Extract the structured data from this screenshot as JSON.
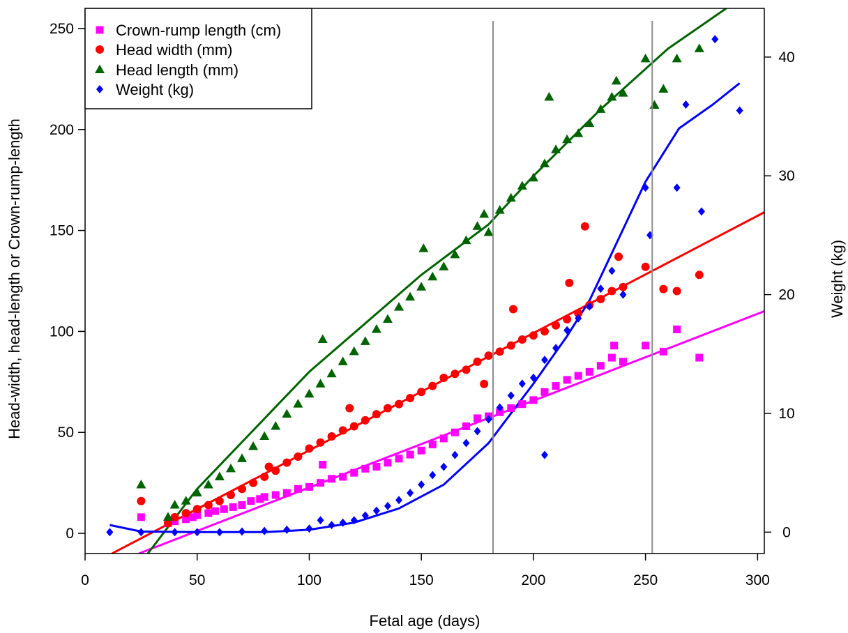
{
  "chart_data": {
    "type": "scatter",
    "xlabel": "Fetal age (days)",
    "ylabel_left": "Head-width, head-length or Crown-rump-length",
    "ylabel_right": "Weight (kg)",
    "xlim": [
      0,
      303
    ],
    "ylim_left": [
      -10,
      260
    ],
    "ylim_right": [
      -1.8,
      44.1
    ],
    "x_ticks": [
      0,
      50,
      100,
      150,
      200,
      250,
      300
    ],
    "y_ticks_left": [
      0,
      50,
      100,
      150,
      200,
      250
    ],
    "y_ticks_right": [
      0,
      10,
      20,
      30,
      40
    ],
    "vertical_reference_lines": [
      182,
      253
    ],
    "legend_position": "top-left",
    "grid": false,
    "series": [
      {
        "name": "Crown-rump length (cm)",
        "marker": "square",
        "color": "#ff00ff",
        "axis": "left",
        "points": [
          [
            25,
            8
          ],
          [
            37,
            5
          ],
          [
            40,
            6
          ],
          [
            45,
            7
          ],
          [
            48,
            8
          ],
          [
            50,
            9
          ],
          [
            55,
            10
          ],
          [
            58,
            11
          ],
          [
            62,
            12
          ],
          [
            66,
            13
          ],
          [
            70,
            14
          ],
          [
            74,
            16
          ],
          [
            78,
            17
          ],
          [
            80,
            18
          ],
          [
            85,
            19
          ],
          [
            90,
            20
          ],
          [
            95,
            22
          ],
          [
            100,
            23
          ],
          [
            105,
            25
          ],
          [
            106,
            34
          ],
          [
            110,
            27
          ],
          [
            115,
            28
          ],
          [
            120,
            30
          ],
          [
            125,
            32
          ],
          [
            130,
            33
          ],
          [
            135,
            35
          ],
          [
            140,
            37
          ],
          [
            145,
            39
          ],
          [
            150,
            41
          ],
          [
            155,
            44
          ],
          [
            160,
            47
          ],
          [
            165,
            50
          ],
          [
            170,
            53
          ],
          [
            175,
            57
          ],
          [
            180,
            58
          ],
          [
            185,
            60
          ],
          [
            190,
            62
          ],
          [
            195,
            64
          ],
          [
            200,
            66
          ],
          [
            205,
            70
          ],
          [
            210,
            73
          ],
          [
            215,
            76
          ],
          [
            220,
            78
          ],
          [
            225,
            80
          ],
          [
            230,
            83
          ],
          [
            235,
            87
          ],
          [
            236,
            93
          ],
          [
            240,
            85
          ],
          [
            250,
            93
          ],
          [
            258,
            90
          ],
          [
            264,
            101
          ],
          [
            274,
            87
          ]
        ]
      },
      {
        "name": "Head width (mm)",
        "marker": "circle",
        "color": "#ff0000",
        "axis": "left",
        "points": [
          [
            25,
            16
          ],
          [
            37,
            5
          ],
          [
            40,
            8
          ],
          [
            45,
            10
          ],
          [
            50,
            12
          ],
          [
            55,
            14
          ],
          [
            60,
            16
          ],
          [
            65,
            19
          ],
          [
            70,
            22
          ],
          [
            75,
            25
          ],
          [
            80,
            28
          ],
          [
            82,
            33
          ],
          [
            85,
            31
          ],
          [
            90,
            35
          ],
          [
            95,
            38
          ],
          [
            100,
            42
          ],
          [
            105,
            45
          ],
          [
            110,
            48
          ],
          [
            115,
            51
          ],
          [
            118,
            62
          ],
          [
            120,
            53
          ],
          [
            125,
            56
          ],
          [
            130,
            59
          ],
          [
            135,
            62
          ],
          [
            140,
            64
          ],
          [
            145,
            67
          ],
          [
            150,
            70
          ],
          [
            155,
            73
          ],
          [
            160,
            77
          ],
          [
            165,
            79
          ],
          [
            170,
            81
          ],
          [
            175,
            85
          ],
          [
            178,
            74
          ],
          [
            180,
            88
          ],
          [
            185,
            90
          ],
          [
            190,
            93
          ],
          [
            191,
            111
          ],
          [
            195,
            96
          ],
          [
            200,
            98
          ],
          [
            205,
            100
          ],
          [
            210,
            103
          ],
          [
            215,
            106
          ],
          [
            216,
            124
          ],
          [
            220,
            109
          ],
          [
            223,
            152
          ],
          [
            225,
            113
          ],
          [
            230,
            116
          ],
          [
            235,
            120
          ],
          [
            238,
            137
          ],
          [
            240,
            122
          ],
          [
            250,
            132
          ],
          [
            258,
            121
          ],
          [
            264,
            120
          ],
          [
            274,
            128
          ]
        ]
      },
      {
        "name": "Head length (mm)",
        "marker": "triangle",
        "color": "#006400",
        "axis": "left",
        "points": [
          [
            25,
            24
          ],
          [
            37,
            8
          ],
          [
            40,
            14
          ],
          [
            45,
            16
          ],
          [
            50,
            20
          ],
          [
            55,
            24
          ],
          [
            60,
            28
          ],
          [
            65,
            32
          ],
          [
            70,
            37
          ],
          [
            75,
            43
          ],
          [
            80,
            48
          ],
          [
            85,
            53
          ],
          [
            90,
            59
          ],
          [
            95,
            64
          ],
          [
            100,
            69
          ],
          [
            105,
            74
          ],
          [
            106,
            96
          ],
          [
            110,
            79
          ],
          [
            115,
            85
          ],
          [
            120,
            90
          ],
          [
            125,
            95
          ],
          [
            130,
            101
          ],
          [
            135,
            106
          ],
          [
            140,
            112
          ],
          [
            145,
            117
          ],
          [
            150,
            122
          ],
          [
            151,
            141
          ],
          [
            155,
            127
          ],
          [
            160,
            132
          ],
          [
            165,
            138
          ],
          [
            170,
            145
          ],
          [
            175,
            152
          ],
          [
            178,
            158
          ],
          [
            180,
            149
          ],
          [
            185,
            160
          ],
          [
            190,
            166
          ],
          [
            195,
            172
          ],
          [
            200,
            176
          ],
          [
            205,
            183
          ],
          [
            207,
            216
          ],
          [
            210,
            190
          ],
          [
            215,
            195
          ],
          [
            220,
            198
          ],
          [
            225,
            203
          ],
          [
            230,
            210
          ],
          [
            235,
            216
          ],
          [
            237,
            224
          ],
          [
            240,
            218
          ],
          [
            250,
            235
          ],
          [
            254,
            212
          ],
          [
            258,
            220
          ],
          [
            264,
            235
          ],
          [
            274,
            240
          ]
        ]
      },
      {
        "name": "Weight (kg)",
        "marker": "diamond",
        "color": "#0000ff",
        "axis": "right",
        "points": [
          [
            11,
            0
          ],
          [
            25,
            0
          ],
          [
            40,
            0
          ],
          [
            50,
            0
          ],
          [
            60,
            0
          ],
          [
            70,
            0.05
          ],
          [
            80,
            0.1
          ],
          [
            90,
            0.2
          ],
          [
            100,
            0.3
          ],
          [
            105,
            1.0
          ],
          [
            110,
            0.6
          ],
          [
            115,
            0.8
          ],
          [
            120,
            1.0
          ],
          [
            125,
            1.4
          ],
          [
            130,
            1.8
          ],
          [
            135,
            2.2
          ],
          [
            140,
            2.7
          ],
          [
            145,
            3.3
          ],
          [
            150,
            4.0
          ],
          [
            155,
            4.8
          ],
          [
            160,
            5.5
          ],
          [
            165,
            6.5
          ],
          [
            170,
            7.5
          ],
          [
            175,
            8.5
          ],
          [
            180,
            9.5
          ],
          [
            185,
            10.5
          ],
          [
            190,
            11.5
          ],
          [
            195,
            12.5
          ],
          [
            200,
            13.0
          ],
          [
            205,
            6.5
          ],
          [
            205,
            14.5
          ],
          [
            210,
            15.5
          ],
          [
            215,
            17.0
          ],
          [
            220,
            18.0
          ],
          [
            225,
            19.0
          ],
          [
            230,
            20.5
          ],
          [
            235,
            22.0
          ],
          [
            240,
            20.0
          ],
          [
            250,
            29.0
          ],
          [
            252,
            25.0
          ],
          [
            264,
            29.0
          ],
          [
            268,
            36.0
          ],
          [
            275,
            27.0
          ],
          [
            281,
            41.5
          ],
          [
            292,
            35.5
          ]
        ]
      }
    ],
    "fit_lines": [
      {
        "series": "Crown-rump length (cm)",
        "color": "#ff00ff",
        "axis": "left",
        "points": [
          [
            24,
            -10
          ],
          [
            303,
            110
          ]
        ]
      },
      {
        "series": "Head width (mm)",
        "color": "#ff0000",
        "axis": "left",
        "points": [
          [
            12,
            -10
          ],
          [
            303,
            159
          ]
        ]
      },
      {
        "series": "Head length (mm)",
        "color": "#006400",
        "axis": "left",
        "points": [
          [
            28,
            -10
          ],
          [
            50,
            22
          ],
          [
            100,
            80
          ],
          [
            150,
            128
          ],
          [
            180,
            153
          ],
          [
            200,
            177
          ],
          [
            230,
            210
          ],
          [
            260,
            240
          ],
          [
            286,
            260
          ]
        ]
      },
      {
        "series": "Weight (kg)",
        "color": "#0000ff",
        "axis": "right",
        "points": [
          [
            11,
            0.6
          ],
          [
            25,
            0.05
          ],
          [
            50,
            0
          ],
          [
            80,
            0
          ],
          [
            100,
            0.2
          ],
          [
            120,
            0.8
          ],
          [
            140,
            2.0
          ],
          [
            160,
            4.0
          ],
          [
            180,
            7.5
          ],
          [
            200,
            12.5
          ],
          [
            215,
            16.5
          ],
          [
            225,
            19.5
          ],
          [
            235,
            23.5
          ],
          [
            250,
            29.5
          ],
          [
            265,
            34.0
          ],
          [
            280,
            36.0
          ],
          [
            292,
            37.8
          ]
        ]
      }
    ]
  }
}
